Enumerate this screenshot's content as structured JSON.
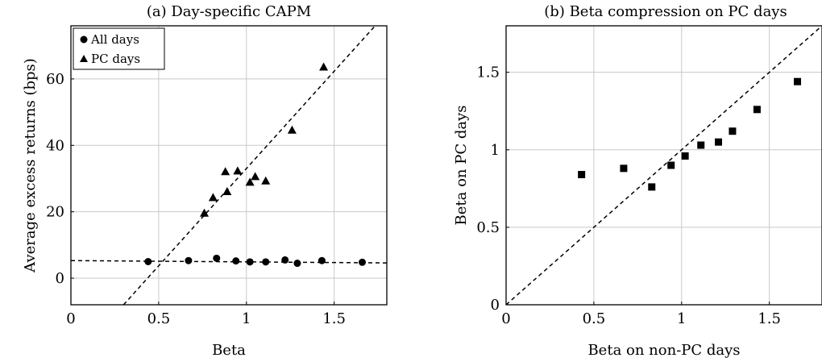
{
  "chart_data": [
    {
      "type": "scatter",
      "title": "(a) Day-specific CAPM",
      "xlabel": "Beta",
      "ylabel": "Average excess returns (bps)",
      "xlim": [
        0,
        1.8
      ],
      "ylim": [
        -8,
        76
      ],
      "xticks": [
        "0",
        "0.5",
        "1",
        "1.5"
      ],
      "yticks": [
        "0",
        "20",
        "40",
        "60"
      ],
      "grid": true,
      "legend_position": "top-left",
      "series": [
        {
          "name": "All days",
          "marker": "circle",
          "x": [
            0.44,
            0.67,
            0.83,
            0.94,
            1.02,
            1.11,
            1.22,
            1.29,
            1.43,
            1.66
          ],
          "y": [
            5.0,
            5.3,
            6.0,
            5.2,
            4.9,
            4.9,
            5.5,
            4.5,
            5.3,
            4.8
          ]
        },
        {
          "name": "PC days",
          "marker": "triangle",
          "x": [
            0.76,
            0.81,
            0.88,
            0.89,
            0.95,
            1.02,
            1.05,
            1.11,
            1.26,
            1.44
          ],
          "y": [
            19.5,
            24.2,
            32.0,
            26.0,
            32.2,
            28.8,
            30.5,
            29.2,
            44.5,
            63.5
          ]
        }
      ],
      "fit_lines": [
        {
          "x": [
            0,
            1.8
          ],
          "y": [
            5.3,
            4.6
          ]
        },
        {
          "x": [
            0.3,
            1.8
          ],
          "y": [
            -8,
            79.9
          ]
        }
      ]
    },
    {
      "type": "scatter",
      "title": "(b) Beta compression on PC days",
      "xlabel": "Beta on non-PC days",
      "ylabel": "Beta on PC days",
      "xlim": [
        0,
        1.8
      ],
      "ylim": [
        0,
        1.8
      ],
      "xticks": [
        "0",
        "0.5",
        "1",
        "1.5"
      ],
      "yticks": [
        "0",
        "0.5",
        "1",
        "1.5"
      ],
      "grid": true,
      "series": [
        {
          "marker": "square",
          "x": [
            0.43,
            0.67,
            0.83,
            0.94,
            1.02,
            1.11,
            1.21,
            1.29,
            1.43,
            1.66
          ],
          "y": [
            0.84,
            0.88,
            0.76,
            0.9,
            0.96,
            1.03,
            1.05,
            1.12,
            1.26,
            1.44
          ]
        }
      ],
      "fit_lines": [
        {
          "x": [
            0,
            1.8
          ],
          "y": [
            0,
            1.8
          ]
        }
      ]
    }
  ]
}
